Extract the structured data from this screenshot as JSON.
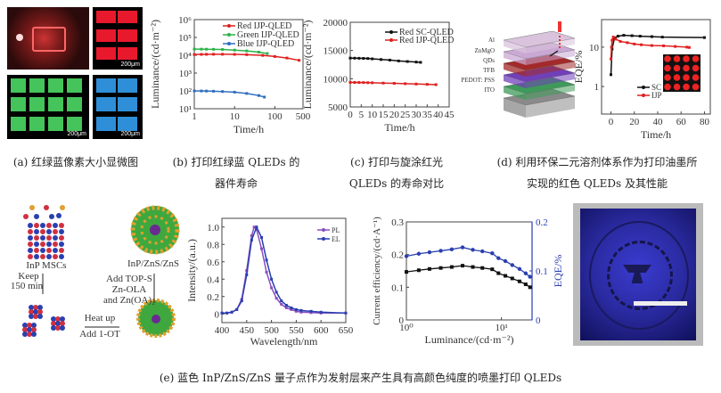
{
  "panel_a": {
    "scale_label": "200μm",
    "colors": {
      "red": "#e8192c",
      "green": "#44c45a",
      "blue": "#2e8fd8"
    }
  },
  "panel_b": {
    "ylabel": "Luminance/(cd·m⁻²)",
    "xlabel": "Time/h",
    "xticks": [
      "1",
      "10",
      "100",
      "500"
    ],
    "xtick_vals": [
      1,
      10,
      100,
      500
    ],
    "yticks": [
      "10¹",
      "10²",
      "10³",
      "10⁴",
      "10⁵",
      "10⁶"
    ],
    "ytick_vals": [
      10,
      100,
      1000,
      10000,
      100000,
      1000000
    ],
    "x_scale": "log",
    "y_scale": "log",
    "xlim": [
      1,
      500
    ],
    "ylim": [
      10,
      1000000
    ],
    "series": [
      {
        "name": "Red IJP-QLED",
        "color": "#e02020",
        "x": [
          1,
          1.5,
          2,
          3,
          5,
          10,
          20,
          50,
          100,
          200,
          400
        ],
        "y": [
          11000,
          11200,
          11300,
          11400,
          11400,
          11200,
          10800,
          9800,
          8500,
          7000,
          5200
        ]
      },
      {
        "name": "Green IJP-QLED",
        "color": "#2db24a",
        "x": [
          1,
          1.5,
          2,
          3,
          5,
          10,
          20,
          40,
          65
        ],
        "y": [
          22000,
          22000,
          21800,
          21500,
          21000,
          19500,
          17500,
          15000,
          12500
        ]
      },
      {
        "name": "Blue IJP-QLED",
        "color": "#2f6fc0",
        "x": [
          1,
          1.5,
          2,
          3,
          5,
          10,
          20,
          40,
          55
        ],
        "y": [
          100,
          99,
          98,
          96,
          92,
          85,
          72,
          55,
          45
        ]
      }
    ]
  },
  "panel_c": {
    "ylabel": "Luminance/(cd·m⁻²)",
    "xlabel": "Time/h",
    "xticks": [
      "0",
      "5",
      "10",
      "15",
      "20",
      "25",
      "30",
      "35",
      "40",
      "45"
    ],
    "xtick_vals": [
      0,
      5,
      10,
      15,
      20,
      25,
      30,
      35,
      40,
      45
    ],
    "yticks": [
      "5000",
      "10000",
      "15000",
      "20000"
    ],
    "ytick_vals": [
      5000,
      10000,
      15000,
      20000
    ],
    "xlim": [
      0,
      45
    ],
    "ylim": [
      5000,
      20000
    ],
    "series": [
      {
        "name": "Red SC-QLED",
        "color": "#111111",
        "x": [
          0,
          2,
          4,
          6,
          8,
          10,
          14,
          18,
          22,
          26,
          30,
          32
        ],
        "y": [
          13650,
          13640,
          13620,
          13600,
          13580,
          13520,
          13400,
          13300,
          13150,
          13050,
          12950,
          12900
        ]
      },
      {
        "name": "Red IJP-QLED",
        "color": "#e02020",
        "x": [
          0,
          2,
          4,
          6,
          8,
          10,
          15,
          20,
          25,
          30,
          35,
          39
        ],
        "y": [
          9350,
          9340,
          9330,
          9320,
          9300,
          9280,
          9230,
          9180,
          9120,
          9060,
          9000,
          8950
        ]
      }
    ]
  },
  "panel_d": {
    "layers": [
      "Al",
      "ZnMgO",
      "QDs",
      "TFB",
      "PEDOT: PSS",
      "ITO"
    ],
    "layer_colors": [
      "#d9c3dd",
      "#c9a8d3",
      "#a32a2a",
      "#7040b8",
      "#3f9a5a",
      "#8a8a8a"
    ],
    "ylabel": "EQE/%",
    "xlabel": "Time/h",
    "xticks": [
      "0",
      "20",
      "40",
      "60",
      "80"
    ],
    "xtick_vals": [
      0,
      20,
      40,
      60,
      80
    ],
    "yticks": [
      "1",
      "10"
    ],
    "ytick_vals": [
      1,
      10
    ],
    "y_scale": "log",
    "xlim": [
      -8,
      85
    ],
    "ylim": [
      0.2,
      50
    ],
    "series": [
      {
        "name": "SC",
        "color": "#111111",
        "x": [
          0,
          1,
          3,
          6,
          11,
          18,
          25,
          35,
          44,
          80
        ],
        "y": [
          2,
          9,
          17,
          19,
          20,
          19.5,
          19,
          18.5,
          18,
          17.5
        ]
      },
      {
        "name": "IJP",
        "color": "#e02020",
        "x": [
          0,
          0.5,
          1,
          2,
          4,
          8,
          14,
          20,
          26,
          35,
          45,
          55,
          65,
          67
        ],
        "y": [
          5,
          10,
          15,
          18,
          16,
          14,
          13,
          12,
          11.5,
          11,
          10.8,
          10.4,
          10,
          9.8
        ]
      }
    ]
  },
  "panel_e": {
    "synthesis": {
      "msc_label": "InP MSCs",
      "keep_label": "Keep",
      "time_label": "150 min",
      "product_label": "InP/ZnS/ZnS",
      "add_label1": "Add TOP-S",
      "add_label2": "Zn-OLA",
      "add_label3": "and Zn(OA)₂",
      "heat_label": "Heat up",
      "ot_label": "Add 1-OT"
    },
    "spectrum": {
      "ylabel": "Intensity/(a.u.)",
      "xlabel": "Wavelength/nm",
      "xticks": [
        "400",
        "450",
        "500",
        "550",
        "600",
        "650"
      ],
      "xtick_vals": [
        400,
        450,
        500,
        550,
        600,
        650
      ],
      "yticks": [
        "0",
        "0.2",
        "0.4",
        "0.6",
        "0.8",
        "1.0"
      ],
      "ytick_vals": [
        0,
        0.2,
        0.4,
        0.6,
        0.8,
        1.0
      ],
      "xlim": [
        400,
        650
      ],
      "ylim": [
        -0.1,
        1.1
      ],
      "series": [
        {
          "name": "PL",
          "color": "#8a4fc0",
          "x": [
            400,
            410,
            420,
            430,
            440,
            450,
            460,
            465,
            470,
            480,
            490,
            500,
            510,
            520,
            530,
            540,
            550,
            560,
            580,
            600,
            650
          ],
          "y": [
            0.01,
            0.01,
            0.02,
            0.05,
            0.17,
            0.5,
            0.9,
            1.0,
            0.97,
            0.75,
            0.48,
            0.3,
            0.18,
            0.11,
            0.07,
            0.05,
            0.03,
            0.02,
            0.015,
            0.01,
            0.01
          ]
        },
        {
          "name": "EL",
          "color": "#2a3fb0",
          "x": [
            400,
            410,
            420,
            430,
            440,
            450,
            460,
            470,
            480,
            490,
            500,
            510,
            520,
            530,
            540,
            550,
            560,
            580,
            600,
            650
          ],
          "y": [
            0.01,
            0.01,
            0.02,
            0.05,
            0.15,
            0.45,
            0.85,
            1.0,
            0.88,
            0.62,
            0.4,
            0.25,
            0.15,
            0.1,
            0.07,
            0.05,
            0.04,
            0.03,
            0.02,
            0.01
          ]
        }
      ]
    },
    "efficiency": {
      "ylabel": "Current efficiency/(cd·A⁻¹)",
      "y2label": "EQE/%",
      "xlabel": "Luminance/(cd·m⁻²)",
      "xticks": [
        "10⁰",
        "10¹"
      ],
      "xtick_vals": [
        1,
        10
      ],
      "yticks": [
        "0",
        "0.1",
        "0.2",
        "0.3"
      ],
      "ytick_vals": [
        0,
        0.1,
        0.2,
        0.3
      ],
      "y2ticks": [
        "0",
        "0.1",
        "0.2"
      ],
      "y2tick_vals": [
        0,
        0.1,
        0.2
      ],
      "xlim": [
        1,
        21
      ],
      "ylim": [
        0,
        0.3
      ],
      "y2lim": [
        0,
        0.2
      ],
      "x": [
        1,
        1.35,
        1.75,
        2.3,
        3,
        3.9,
        5,
        6.3,
        8,
        9.3,
        11,
        13,
        15.5,
        18,
        20
      ],
      "ce": [
        0.147,
        0.152,
        0.156,
        0.159,
        0.162,
        0.166,
        0.162,
        0.159,
        0.155,
        0.143,
        0.135,
        0.127,
        0.118,
        0.109,
        0.1
      ],
      "eqe": [
        0.13,
        0.135,
        0.138,
        0.141,
        0.144,
        0.148,
        0.143,
        0.14,
        0.136,
        0.126,
        0.12,
        0.112,
        0.104,
        0.095,
        0.088
      ],
      "ce_color": "#111111",
      "eqe_color": "#2a3fb0"
    }
  },
  "captions": {
    "a": "(a) 红绿蓝像素大小显微图",
    "b1": "(b) 打印红绿蓝 QLEDs 的",
    "b2": "器件寿命",
    "c1": "(c) 打印与旋涂红光",
    "c2": "QLEDs 的寿命对比",
    "d1": "(d) 利用环保二元溶剂体系作为打印油墨所",
    "d2": "实现的红色 QLEDs 及其性能",
    "e": "(e) 蓝色 InP/ZnS/ZnS 量子点作为发射层来产生具有高颜色纯度的喷墨打印 QLEDs"
  }
}
